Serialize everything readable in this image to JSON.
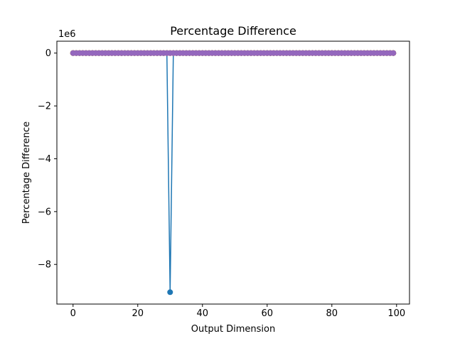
{
  "chart_data": {
    "type": "line",
    "title": "Percentage Difference",
    "xlabel": "Output Dimension",
    "ylabel": "Percentage Difference",
    "y_scale_label": "1e6",
    "xlim": [
      -5,
      104
    ],
    "ylim": [
      -9.5,
      0.45
    ],
    "y_multiplier": 1000000,
    "x_ticks": [
      0,
      20,
      40,
      60,
      80,
      100
    ],
    "x_tick_labels": [
      "0",
      "20",
      "40",
      "60",
      "80",
      "100"
    ],
    "y_ticks": [
      0,
      -2,
      -4,
      -6,
      -8
    ],
    "y_tick_labels": [
      "0",
      "−2",
      "−4",
      "−6",
      "−8"
    ],
    "grid": false,
    "legend": "none",
    "series": [
      {
        "color": "#1f77b4",
        "x_start": 0,
        "x_end": 99,
        "baseline_value": 0,
        "outliers": [
          {
            "x": 30,
            "y": -9.05
          }
        ]
      },
      {
        "color": "#ff7f0e",
        "x_start": 0,
        "x_end": 99,
        "baseline_value": 0,
        "outliers": []
      },
      {
        "color": "#2ca02c",
        "x_start": 0,
        "x_end": 99,
        "baseline_value": 0,
        "outliers": []
      },
      {
        "color": "#d62728",
        "x_start": 0,
        "x_end": 99,
        "baseline_value": 0,
        "outliers": []
      },
      {
        "color": "#9467bd",
        "x_start": 0,
        "x_end": 99,
        "baseline_value": 0,
        "outliers": []
      }
    ]
  }
}
